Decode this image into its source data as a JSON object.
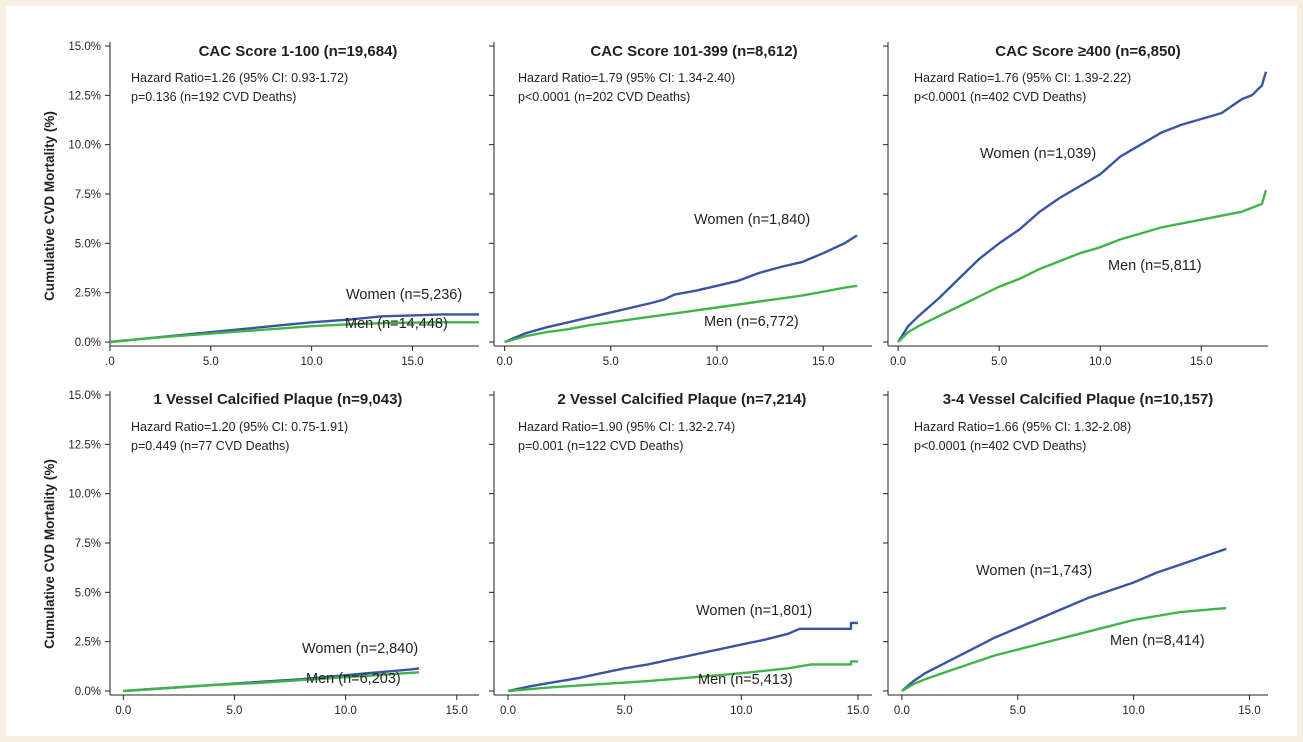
{
  "y_axis_label": "Cumulative CVD Mortality (%)",
  "colors": {
    "women": "#3a54a4",
    "men": "#3fb549",
    "text": "#231f20",
    "background": "#f5f0e3"
  },
  "chart_data": [
    {
      "type": "line",
      "title": "CAC Score 1-100 (n=19,684)",
      "stat_line1": "Hazard Ratio=1.26 (95% CI: 0.93-1.72)",
      "stat_line2": "p=0.136 (n=192 CVD Deaths)",
      "xlim": [
        0,
        18.3
      ],
      "ylim": [
        0,
        15
      ],
      "x_ticks": [
        0,
        5,
        10,
        15
      ],
      "x_tick_labels": [
        ".0",
        "5.0",
        "10.0",
        "15.0"
      ],
      "y_ticks": [
        0,
        2.5,
        5,
        7.5,
        10,
        12.5,
        15
      ],
      "y_tick_labels": [
        "0.0%",
        "2.5%",
        "5.0%",
        "7.5%",
        "10.0%",
        "12.5%",
        "15.0%"
      ],
      "show_y_labels": true,
      "series": [
        {
          "name": "Women (n=5,236)",
          "color": "#3a54a4",
          "x": [
            0,
            2,
            4,
            6,
            8,
            10,
            12,
            13.5,
            15,
            16.5,
            18.3
          ],
          "y": [
            0,
            0.2,
            0.4,
            0.6,
            0.8,
            1.0,
            1.15,
            1.3,
            1.35,
            1.4,
            1.4
          ]
        },
        {
          "name": "Men (n=14,448)",
          "color": "#3fb549",
          "x": [
            0,
            2,
            4,
            6,
            8,
            10,
            12,
            14,
            16,
            18.3
          ],
          "y": [
            0,
            0.2,
            0.35,
            0.5,
            0.65,
            0.8,
            0.9,
            0.97,
            1.0,
            1.0
          ]
        }
      ]
    },
    {
      "type": "line",
      "title": "CAC Score 101-399 (n=8,612)",
      "stat_line1": "Hazard Ratio=1.79 (95% CI: 1.34-2.40)",
      "stat_line2": "p<0.0001 (n=202 CVD Deaths)",
      "xlim": [
        -0.5,
        17.3
      ],
      "ylim": [
        0,
        15
      ],
      "x_ticks": [
        0,
        5,
        10,
        15
      ],
      "x_tick_labels": [
        "0.0",
        "5.0",
        "10.0",
        "15.0"
      ],
      "y_ticks": [
        0,
        2.5,
        5,
        7.5,
        10,
        12.5,
        15
      ],
      "y_tick_labels": [
        "",
        "",
        "",
        "",
        "",
        "",
        ""
      ],
      "show_y_labels": false,
      "series": [
        {
          "name": "Women (n=1,840)",
          "color": "#3a54a4",
          "x": [
            0,
            1,
            2,
            3,
            4,
            5,
            6,
            7,
            7.5,
            8,
            9,
            10,
            11,
            12,
            13,
            14,
            15,
            16,
            16.6
          ],
          "y": [
            0,
            0.45,
            0.75,
            1.0,
            1.25,
            1.5,
            1.75,
            2.0,
            2.15,
            2.4,
            2.6,
            2.85,
            3.1,
            3.5,
            3.8,
            4.05,
            4.5,
            5.0,
            5.4
          ]
        },
        {
          "name": "Men (n=6,772)",
          "color": "#3fb549",
          "x": [
            0,
            1,
            2,
            3,
            4,
            5,
            6,
            7,
            8,
            9,
            10,
            11,
            12,
            13,
            14,
            15,
            16,
            16.6
          ],
          "y": [
            0,
            0.3,
            0.5,
            0.65,
            0.85,
            1.0,
            1.15,
            1.3,
            1.45,
            1.6,
            1.75,
            1.9,
            2.05,
            2.2,
            2.35,
            2.55,
            2.75,
            2.85
          ]
        }
      ]
    },
    {
      "type": "line",
      "title": "CAC Score ≥400 (n=6,850)",
      "stat_line1": "Hazard Ratio=1.76 (95% CI: 1.39-2.22)",
      "stat_line2": "p<0.0001 (n=402 CVD Deaths)",
      "xlim": [
        -0.5,
        18.3
      ],
      "ylim": [
        0,
        15
      ],
      "x_ticks": [
        0,
        5,
        10,
        15
      ],
      "x_tick_labels": [
        "0.0",
        "5.0",
        "10.0",
        "15.0"
      ],
      "y_ticks": [
        0,
        2.5,
        5,
        7.5,
        10,
        12.5,
        15
      ],
      "y_tick_labels": [
        "",
        "",
        "",
        "",
        "",
        "",
        ""
      ],
      "show_y_labels": false,
      "series": [
        {
          "name": "Women (n=1,039)",
          "color": "#3a54a4",
          "x": [
            0,
            0.5,
            1,
            2,
            3,
            4,
            5,
            6,
            7,
            8,
            9,
            10,
            11,
            12,
            13,
            14,
            15,
            16,
            17,
            17.5,
            18,
            18.2
          ],
          "y": [
            0,
            0.8,
            1.3,
            2.2,
            3.2,
            4.2,
            5.0,
            5.7,
            6.6,
            7.3,
            7.9,
            8.5,
            9.4,
            10.0,
            10.6,
            11.0,
            11.3,
            11.6,
            12.3,
            12.5,
            13.0,
            13.7
          ]
        },
        {
          "name": "Men (n=5,811)",
          "color": "#3fb549",
          "x": [
            0,
            0.5,
            1,
            2,
            3,
            4,
            5,
            6,
            7,
            8,
            9,
            10,
            11,
            12,
            13,
            14,
            15,
            16,
            17,
            18,
            18.2
          ],
          "y": [
            0,
            0.5,
            0.8,
            1.3,
            1.8,
            2.3,
            2.8,
            3.2,
            3.7,
            4.1,
            4.5,
            4.8,
            5.2,
            5.5,
            5.8,
            6.0,
            6.2,
            6.4,
            6.6,
            7.0,
            7.7
          ]
        }
      ]
    },
    {
      "type": "line",
      "title": "1 Vessel Calcified Plaque (n=9,043)",
      "stat_line1": "Hazard Ratio=1.20 (95% CI: 0.75-1.91)",
      "stat_line2": "p=0.449 (n=77 CVD Deaths)",
      "xlim": [
        -0.6,
        16.0
      ],
      "ylim": [
        0,
        15
      ],
      "x_ticks": [
        0,
        5,
        10,
        15
      ],
      "x_tick_labels": [
        "0.0",
        "5.0",
        "10.0",
        "15.0"
      ],
      "y_ticks": [
        0,
        2.5,
        5,
        7.5,
        10,
        12.5,
        15
      ],
      "y_tick_labels": [
        "0.0%",
        "2.5%",
        "5.0%",
        "7.5%",
        "10.0%",
        "12.5%",
        "15.0%"
      ],
      "show_y_labels": true,
      "series": [
        {
          "name": "Women (n=2,840)",
          "color": "#3a54a4",
          "x": [
            0,
            2,
            4,
            6,
            8,
            10,
            11,
            12,
            13,
            13.3
          ],
          "y": [
            0,
            0.15,
            0.3,
            0.45,
            0.6,
            0.8,
            0.9,
            1.0,
            1.1,
            1.15
          ]
        },
        {
          "name": "Men (n=6,203)",
          "color": "#3fb549",
          "x": [
            0,
            2,
            4,
            6,
            8,
            10,
            12,
            13.3
          ],
          "y": [
            0,
            0.15,
            0.3,
            0.4,
            0.55,
            0.7,
            0.85,
            0.95
          ]
        }
      ]
    },
    {
      "type": "line",
      "title": "2 Vessel Calcified Plaque (n=7,214)",
      "stat_line1": "Hazard Ratio=1.90 (95% CI: 1.32-2.74)",
      "stat_line2": "p=0.001 (n=122 CVD Deaths)",
      "xlim": [
        -0.6,
        15.6
      ],
      "ylim": [
        0,
        15
      ],
      "x_ticks": [
        0,
        5,
        10,
        15
      ],
      "x_tick_labels": [
        "0.0",
        "5.0",
        "10.0",
        "15.0"
      ],
      "y_ticks": [
        0,
        2.5,
        5,
        7.5,
        10,
        12.5,
        15
      ],
      "y_tick_labels": [
        "",
        "",
        "",
        "",
        "",
        "",
        ""
      ],
      "show_y_labels": false,
      "series": [
        {
          "name": "Women (n=1,801)",
          "color": "#3a54a4",
          "x": [
            0,
            1,
            2,
            3,
            4,
            5,
            6,
            7,
            8,
            9,
            10,
            11,
            12,
            12.5,
            14.7,
            14.7,
            15
          ],
          "y": [
            0,
            0.25,
            0.45,
            0.65,
            0.9,
            1.15,
            1.35,
            1.6,
            1.85,
            2.1,
            2.35,
            2.6,
            2.9,
            3.15,
            3.15,
            3.45,
            3.45
          ]
        },
        {
          "name": "Men (n=5,413)",
          "color": "#3fb549",
          "x": [
            0,
            2,
            4,
            6,
            8,
            10,
            12,
            13,
            14.7,
            14.7,
            15
          ],
          "y": [
            0,
            0.2,
            0.35,
            0.5,
            0.7,
            0.9,
            1.15,
            1.35,
            1.35,
            1.5,
            1.5
          ]
        }
      ]
    },
    {
      "type": "line",
      "title": "3-4 Vessel Calcified Plaque (n=10,157)",
      "stat_line1": "Hazard Ratio=1.66 (95% CI: 1.32-2.08)",
      "stat_line2": "p<0.0001 (n=402 CVD Deaths)",
      "xlim": [
        -0.6,
        15.8
      ],
      "ylim": [
        0,
        15
      ],
      "x_ticks": [
        0,
        5,
        10,
        15
      ],
      "x_tick_labels": [
        "0.0",
        "5.0",
        "10.0",
        "15.0"
      ],
      "y_ticks": [
        0,
        2.5,
        5,
        7.5,
        10,
        12.5,
        15
      ],
      "y_tick_labels": [
        "",
        "",
        "",
        "",
        "",
        "",
        ""
      ],
      "show_y_labels": false,
      "series": [
        {
          "name": "Women (n=1,743)",
          "color": "#3a54a4",
          "x": [
            0,
            0.5,
            1,
            2,
            3,
            4,
            5,
            6,
            7,
            8,
            9,
            10,
            11,
            12,
            13,
            14
          ],
          "y": [
            0,
            0.5,
            0.9,
            1.5,
            2.1,
            2.7,
            3.2,
            3.7,
            4.2,
            4.7,
            5.1,
            5.5,
            6.0,
            6.4,
            6.8,
            7.2
          ]
        },
        {
          "name": "Men (n=8,414)",
          "color": "#3fb549",
          "x": [
            0,
            0.5,
            1,
            2,
            3,
            4,
            5,
            6,
            7,
            8,
            9,
            10,
            11,
            12,
            13,
            14
          ],
          "y": [
            0,
            0.35,
            0.6,
            1.0,
            1.4,
            1.8,
            2.1,
            2.4,
            2.7,
            3.0,
            3.3,
            3.6,
            3.8,
            4.0,
            4.1,
            4.2
          ]
        }
      ]
    }
  ]
}
